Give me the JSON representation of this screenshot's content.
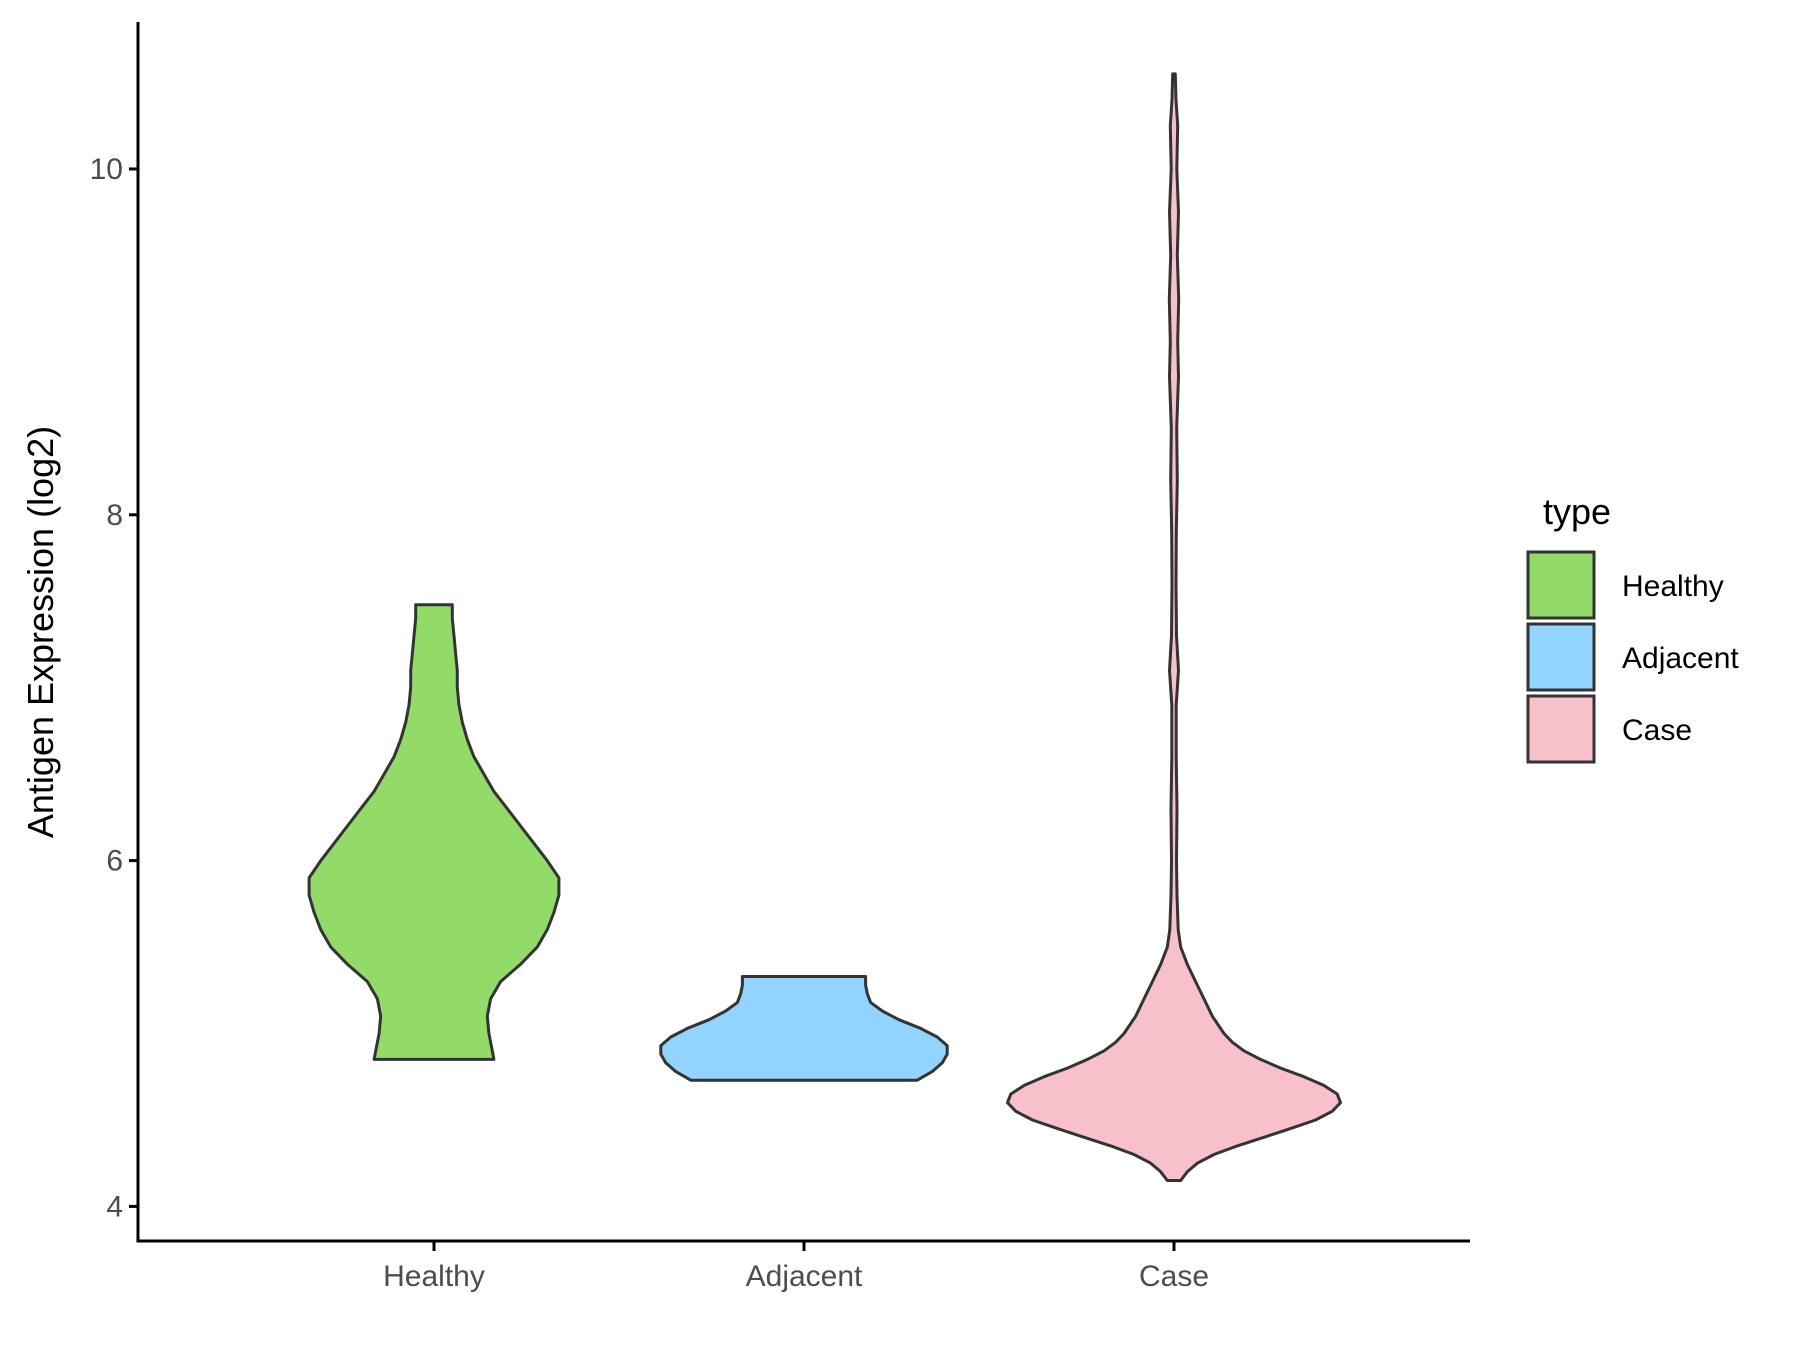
{
  "chart_data": {
    "type": "violin",
    "title": "",
    "xlabel": "",
    "ylabel": "Antigen Expression (log2)",
    "ylim": [
      3.8,
      10.85
    ],
    "yticks": [
      4,
      6,
      8,
      10
    ],
    "categories": [
      "Healthy",
      "Adjacent",
      "Case"
    ],
    "legend": {
      "title": "type",
      "position": "right",
      "entries": [
        {
          "label": "Healthy",
          "color": "#93DB69"
        },
        {
          "label": "Adjacent",
          "color": "#93D3FF"
        },
        {
          "label": "Case",
          "color": "#F8C0CB"
        }
      ]
    },
    "grid": false,
    "series": [
      {
        "category": "Healthy",
        "color": "#93DB69",
        "y_min": 4.85,
        "y_max": 7.48,
        "profile": [
          [
            4.85,
            0.36
          ],
          [
            4.9,
            0.35
          ],
          [
            5.0,
            0.33
          ],
          [
            5.1,
            0.32
          ],
          [
            5.2,
            0.34
          ],
          [
            5.3,
            0.4
          ],
          [
            5.4,
            0.52
          ],
          [
            5.5,
            0.62
          ],
          [
            5.6,
            0.68
          ],
          [
            5.7,
            0.72
          ],
          [
            5.8,
            0.75
          ],
          [
            5.9,
            0.75
          ],
          [
            6.0,
            0.68
          ],
          [
            6.1,
            0.6
          ],
          [
            6.2,
            0.52
          ],
          [
            6.3,
            0.44
          ],
          [
            6.4,
            0.36
          ],
          [
            6.5,
            0.3
          ],
          [
            6.6,
            0.24
          ],
          [
            6.7,
            0.2
          ],
          [
            6.8,
            0.17
          ],
          [
            6.9,
            0.15
          ],
          [
            7.0,
            0.14
          ],
          [
            7.1,
            0.14
          ],
          [
            7.2,
            0.13
          ],
          [
            7.3,
            0.12
          ],
          [
            7.4,
            0.11
          ],
          [
            7.48,
            0.11
          ]
        ]
      },
      {
        "category": "Adjacent",
        "color": "#93D3FF",
        "y_min": 4.73,
        "y_max": 5.33,
        "profile": [
          [
            4.73,
            0.68
          ],
          [
            4.78,
            0.77
          ],
          [
            4.83,
            0.83
          ],
          [
            4.88,
            0.86
          ],
          [
            4.93,
            0.86
          ],
          [
            4.98,
            0.8
          ],
          [
            5.03,
            0.7
          ],
          [
            5.08,
            0.57
          ],
          [
            5.13,
            0.47
          ],
          [
            5.18,
            0.4
          ],
          [
            5.23,
            0.38
          ],
          [
            5.28,
            0.37
          ],
          [
            5.33,
            0.37
          ]
        ]
      },
      {
        "category": "Case",
        "color": "#F8C0CB",
        "y_min": 4.15,
        "y_max": 10.55,
        "profile": [
          [
            4.15,
            0.04
          ],
          [
            4.2,
            0.08
          ],
          [
            4.25,
            0.14
          ],
          [
            4.3,
            0.24
          ],
          [
            4.35,
            0.38
          ],
          [
            4.4,
            0.54
          ],
          [
            4.45,
            0.7
          ],
          [
            4.5,
            0.85
          ],
          [
            4.55,
            0.95
          ],
          [
            4.6,
            1.0
          ],
          [
            4.65,
            0.98
          ],
          [
            4.7,
            0.9
          ],
          [
            4.75,
            0.78
          ],
          [
            4.8,
            0.64
          ],
          [
            4.85,
            0.52
          ],
          [
            4.9,
            0.42
          ],
          [
            4.95,
            0.35
          ],
          [
            5.0,
            0.3
          ],
          [
            5.1,
            0.23
          ],
          [
            5.2,
            0.18
          ],
          [
            5.3,
            0.13
          ],
          [
            5.4,
            0.08
          ],
          [
            5.5,
            0.04
          ],
          [
            5.6,
            0.025
          ],
          [
            5.8,
            0.018
          ],
          [
            6.0,
            0.015
          ],
          [
            6.3,
            0.018
          ],
          [
            6.6,
            0.013
          ],
          [
            6.9,
            0.013
          ],
          [
            7.1,
            0.027
          ],
          [
            7.3,
            0.015
          ],
          [
            7.6,
            0.012
          ],
          [
            7.9,
            0.014
          ],
          [
            8.2,
            0.02
          ],
          [
            8.5,
            0.016
          ],
          [
            8.8,
            0.027
          ],
          [
            9.0,
            0.022
          ],
          [
            9.25,
            0.028
          ],
          [
            9.5,
            0.02
          ],
          [
            9.75,
            0.027
          ],
          [
            10.0,
            0.017
          ],
          [
            10.25,
            0.022
          ],
          [
            10.4,
            0.012
          ],
          [
            10.55,
            0.008
          ]
        ]
      }
    ]
  }
}
